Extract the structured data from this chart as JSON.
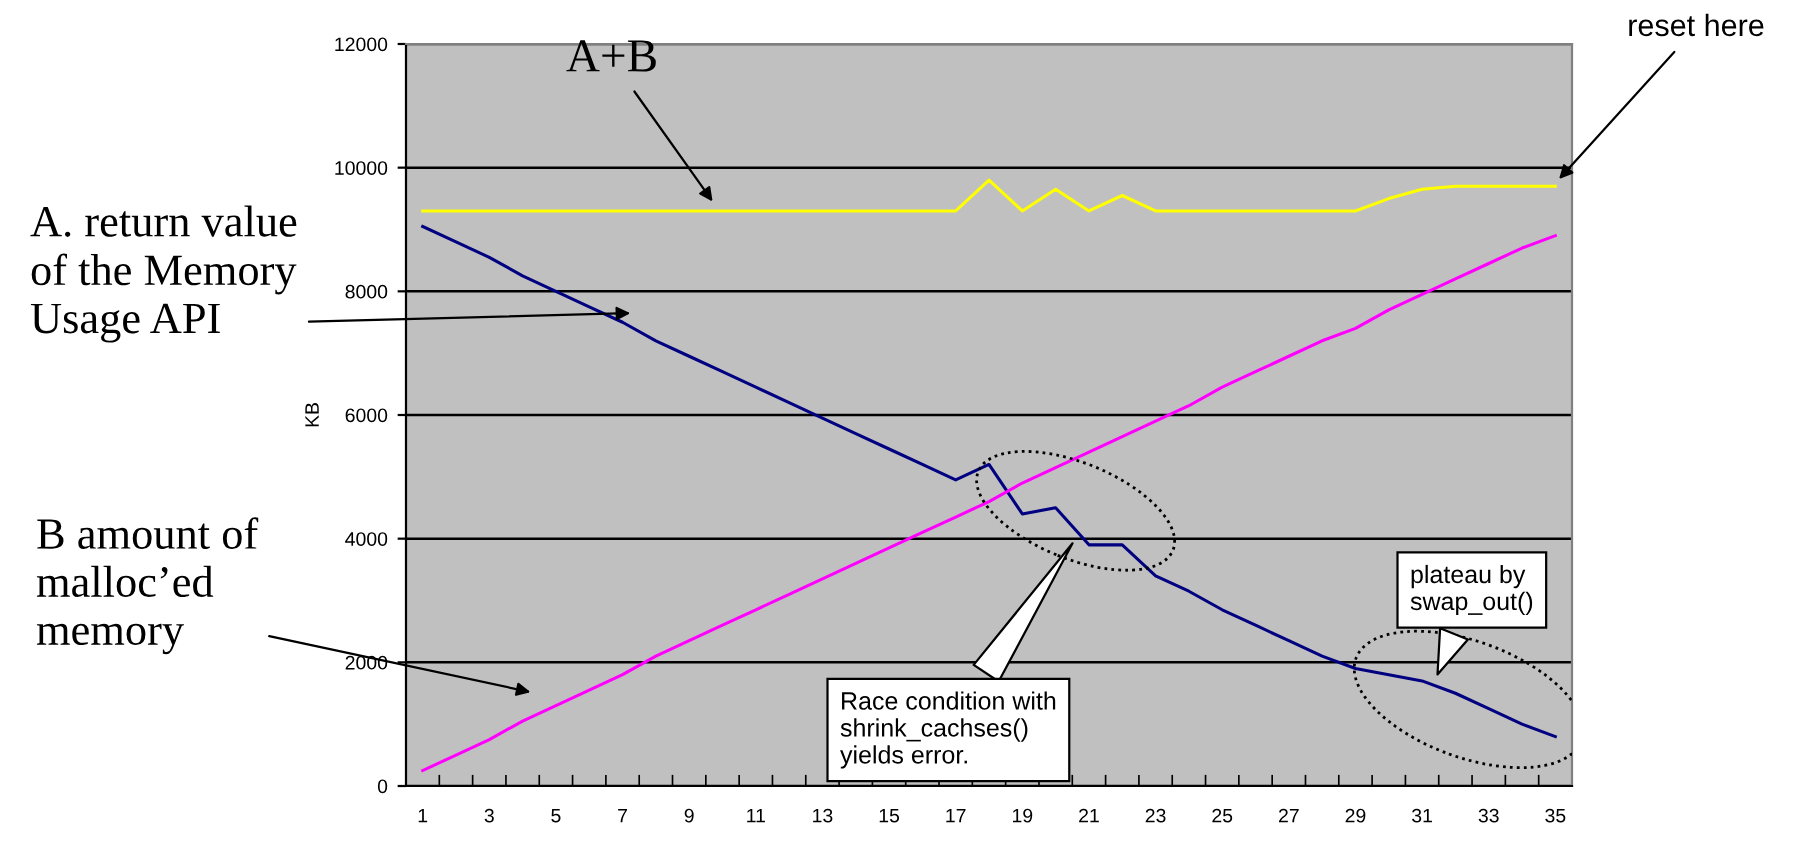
{
  "chart_data": {
    "type": "line",
    "ylabel": "KB",
    "categories": [
      "1",
      null,
      "3",
      null,
      "5",
      null,
      "7",
      null,
      "9",
      null,
      "11",
      null,
      "13",
      null,
      "15",
      null,
      "17",
      null,
      "19",
      null,
      "21",
      null,
      "23",
      null,
      "25",
      null,
      "27",
      null,
      "29",
      null,
      "31",
      null,
      "33",
      null,
      "35"
    ],
    "series": [
      {
        "color": "#ffff00",
        "values": [
          9300,
          9300,
          9300,
          9300,
          9300,
          9300,
          9300,
          9300,
          9300,
          9300,
          9300,
          9300,
          9300,
          9300,
          9300,
          9300,
          9300,
          9800,
          9300,
          9650,
          9300,
          9550,
          9300,
          9300,
          9300,
          9300,
          9300,
          9300,
          9300,
          9500,
          9650,
          9700,
          9700,
          9700,
          9700
        ]
      },
      {
        "color": "#000080",
        "values": [
          9050,
          8800,
          8550,
          8250,
          8000,
          7750,
          7500,
          7200,
          6950,
          6700,
          6450,
          6200,
          5950,
          5700,
          5450,
          5200,
          4950,
          5200,
          4400,
          4500,
          3900,
          3900,
          3400,
          3150,
          2850,
          2600,
          2350,
          2100,
          1900,
          1800,
          1700,
          1500,
          1250,
          1000,
          800
        ]
      },
      {
        "color": "#ff00ff",
        "values": [
          250,
          500,
          750,
          1050,
          1300,
          1550,
          1800,
          2100,
          2350,
          2600,
          2850,
          3100,
          3350,
          3600,
          3850,
          4100,
          4350,
          4600,
          4900,
          5150,
          5400,
          5650,
          5900,
          6150,
          6450,
          6700,
          6950,
          7200,
          7400,
          7700,
          7950,
          8200,
          8450,
          8700,
          8900
        ]
      }
    ],
    "ylim": [
      0,
      12000
    ],
    "yticks": [
      0,
      2000,
      4000,
      6000,
      8000,
      10000,
      12000
    ],
    "grid": "y",
    "marker": "none",
    "line_style": "solid",
    "annotations": [
      "A+B",
      "reset here",
      "A. return value\nof the Memory\nUsage API",
      "B amount of\nmalloc’ed\nmemory",
      "Race condition with\nshrink_cachses()\nyields error.",
      "plateau by\nswap_out()"
    ]
  }
}
